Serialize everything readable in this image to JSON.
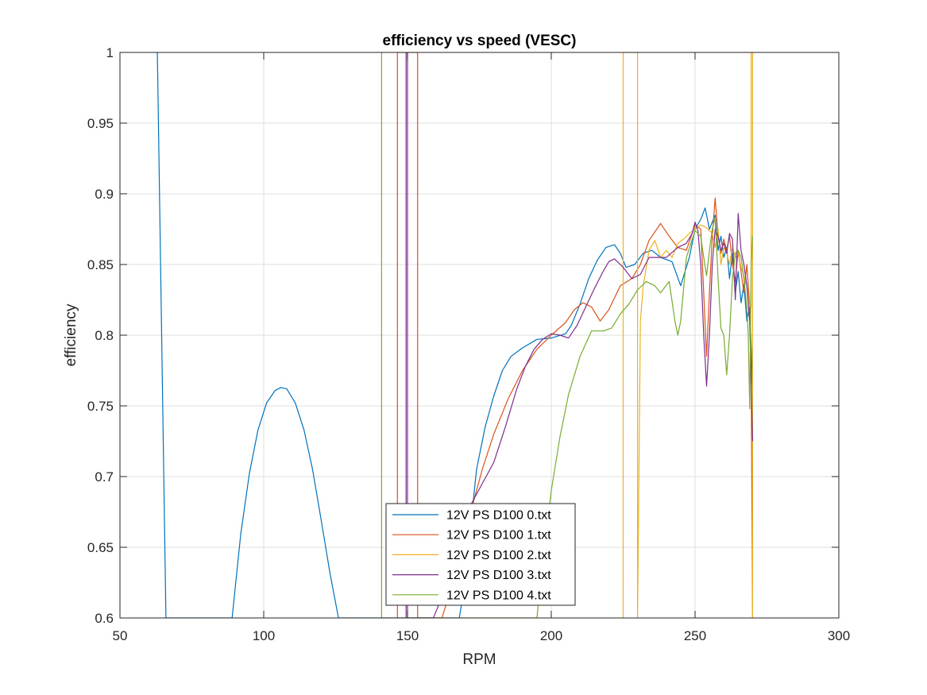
{
  "chart_data": {
    "type": "line",
    "title": "efficiency vs speed (VESC)",
    "xlabel": "RPM",
    "ylabel": "efficiency",
    "xlim": [
      50,
      300
    ],
    "ylim": [
      0.6,
      1
    ],
    "xticks": [
      50,
      100,
      150,
      200,
      250,
      300
    ],
    "yticks": [
      0.6,
      0.65,
      0.7,
      0.75,
      0.8,
      0.85,
      0.9,
      0.95,
      1
    ],
    "ytick_labels": [
      "0.6",
      "0.65",
      "0.7",
      "0.75",
      "0.8",
      "0.85",
      "0.9",
      "0.95",
      "1"
    ],
    "grid": true,
    "legend_position": "bottom-center",
    "series": [
      {
        "name": "12V PS D100 0.txt",
        "color": "#0072BD",
        "x": [
          63,
          66,
          89,
          92,
          95,
          98,
          101,
          104,
          106,
          108,
          111,
          114,
          117,
          120,
          123,
          126,
          168,
          170,
          172,
          174,
          177,
          180,
          183,
          186,
          190,
          195,
          200,
          205,
          207,
          210,
          213,
          216,
          219,
          222,
          224,
          226,
          229,
          232,
          235,
          238,
          242,
          245,
          248,
          250,
          252,
          253.5,
          255,
          257,
          258,
          259,
          260,
          261,
          262,
          263,
          264,
          265,
          266,
          267,
          268,
          269,
          270
        ],
        "y": [
          1.0,
          0.6,
          0.6,
          0.659,
          0.702,
          0.733,
          0.752,
          0.761,
          0.763,
          0.762,
          0.752,
          0.733,
          0.705,
          0.669,
          0.632,
          0.6,
          0.6,
          0.625,
          0.665,
          0.705,
          0.735,
          0.757,
          0.775,
          0.785,
          0.791,
          0.797,
          0.798,
          0.801,
          0.807,
          0.822,
          0.84,
          0.853,
          0.862,
          0.864,
          0.858,
          0.848,
          0.85,
          0.858,
          0.86,
          0.855,
          0.852,
          0.835,
          0.855,
          0.875,
          0.882,
          0.89,
          0.875,
          0.885,
          0.86,
          0.87,
          0.855,
          0.862,
          0.84,
          0.858,
          0.83,
          0.845,
          0.823,
          0.836,
          0.81,
          0.82,
          0.765
        ]
      },
      {
        "name": "12V PS D100 1.txt",
        "color": "#D95319",
        "x": [
          146.5,
          146.5,
          153.5,
          153.5,
          162,
          165,
          168,
          172,
          176,
          180,
          185,
          190,
          195,
          200,
          205,
          208,
          211,
          214,
          217,
          220,
          224,
          228,
          231,
          234,
          238,
          241,
          244,
          247,
          250,
          252,
          253,
          254,
          255,
          256,
          257,
          258,
          259,
          260,
          261,
          262,
          263,
          264,
          265,
          266,
          267,
          268,
          269,
          269.5,
          270
        ],
        "y": [
          0.6,
          1.0,
          1.0,
          0.6,
          0.6,
          0.62,
          0.645,
          0.675,
          0.705,
          0.73,
          0.755,
          0.775,
          0.79,
          0.8,
          0.809,
          0.818,
          0.823,
          0.82,
          0.81,
          0.818,
          0.835,
          0.84,
          0.85,
          0.867,
          0.879,
          0.87,
          0.862,
          0.86,
          0.878,
          0.875,
          0.83,
          0.785,
          0.83,
          0.87,
          0.897,
          0.87,
          0.858,
          0.868,
          0.86,
          0.87,
          0.85,
          0.838,
          0.86,
          0.845,
          0.83,
          0.85,
          0.82,
          0.78,
          0.6
        ]
      },
      {
        "name": "12V PS D100 2.txt",
        "color": "#EDB120",
        "x": [
          225,
          225,
          230,
          230,
          231,
          232,
          234,
          236,
          238,
          240,
          242,
          244,
          246,
          248,
          250,
          252,
          254,
          256,
          257,
          258,
          259,
          260,
          261,
          262,
          263,
          264,
          265,
          266,
          267,
          268,
          269,
          269.5,
          269.5,
          270,
          270
        ],
        "y": [
          0.6,
          1.0,
          1.0,
          0.6,
          0.81,
          0.835,
          0.86,
          0.867,
          0.855,
          0.86,
          0.855,
          0.865,
          0.868,
          0.872,
          0.875,
          0.878,
          0.876,
          0.872,
          0.862,
          0.875,
          0.85,
          0.862,
          0.858,
          0.85,
          0.862,
          0.855,
          0.858,
          0.848,
          0.842,
          0.835,
          0.82,
          0.82,
          1.0,
          1.0,
          0.6
        ]
      },
      {
        "name": "12V PS D100 3.txt",
        "color": "#7E2F8E",
        "x": [
          149.5,
          149.5,
          150,
          150,
          151,
          159,
          162,
          165,
          168,
          172,
          176,
          180,
          184,
          188,
          191,
          194,
          197,
          200,
          203,
          206,
          209,
          212,
          215,
          218,
          220,
          222,
          225,
          228,
          231,
          234,
          237,
          240,
          244,
          247,
          249,
          250,
          251,
          252,
          253,
          254,
          255,
          256,
          257,
          258,
          259,
          260,
          261,
          262,
          263,
          264,
          265,
          266,
          267,
          268,
          269,
          270
        ],
        "y": [
          0.6,
          1.0,
          1.0,
          0.6,
          0.6,
          0.6,
          0.615,
          0.64,
          0.665,
          0.68,
          0.695,
          0.71,
          0.735,
          0.762,
          0.778,
          0.79,
          0.797,
          0.801,
          0.8,
          0.798,
          0.807,
          0.82,
          0.833,
          0.845,
          0.852,
          0.854,
          0.848,
          0.84,
          0.843,
          0.855,
          0.855,
          0.855,
          0.862,
          0.865,
          0.872,
          0.88,
          0.874,
          0.85,
          0.8,
          0.764,
          0.8,
          0.85,
          0.875,
          0.87,
          0.86,
          0.865,
          0.858,
          0.872,
          0.868,
          0.825,
          0.886,
          0.86,
          0.85,
          0.835,
          0.81,
          0.725
        ]
      },
      {
        "name": "12V PS D100 4.txt",
        "color": "#77AC30",
        "x": [
          141,
          141,
          142,
          142,
          195,
          197,
          200,
          203,
          206,
          210,
          214,
          218,
          221,
          224,
          227,
          230,
          233,
          236,
          238,
          241,
          243,
          244,
          245,
          247,
          250,
          252,
          253,
          254,
          255,
          256,
          257,
          258,
          259,
          260,
          261,
          262,
          263,
          264,
          265,
          266,
          267,
          268,
          268.5,
          269,
          269.5,
          270
        ],
        "y": [
          1.0,
          0.6,
          0.6,
          0.6,
          0.6,
          0.64,
          0.69,
          0.728,
          0.758,
          0.785,
          0.803,
          0.803,
          0.805,
          0.815,
          0.822,
          0.832,
          0.838,
          0.835,
          0.83,
          0.838,
          0.81,
          0.8,
          0.81,
          0.855,
          0.874,
          0.87,
          0.855,
          0.842,
          0.86,
          0.875,
          0.883,
          0.84,
          0.805,
          0.8,
          0.772,
          0.8,
          0.84,
          0.858,
          0.86,
          0.855,
          0.84,
          0.82,
          0.8,
          0.748,
          0.85,
          0.87
        ]
      }
    ]
  }
}
